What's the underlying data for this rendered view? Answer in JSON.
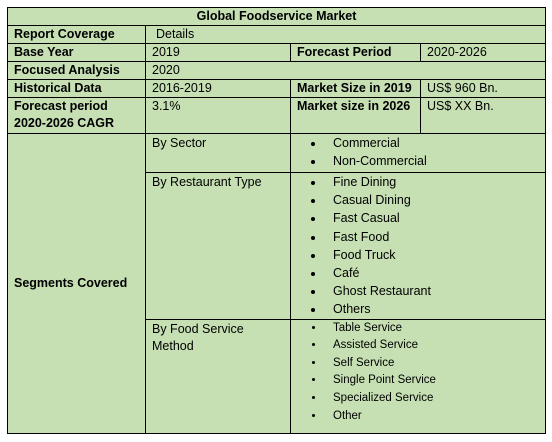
{
  "header": {
    "title": "Global Foodservice Market"
  },
  "table": {
    "rows": [
      [
        "Report Coverage",
        "Details"
      ],
      [
        "Base Year",
        "2019",
        "Forecast Period",
        "2020-2026"
      ],
      [
        "Focused Analysis",
        "2020"
      ],
      [
        "Historical Data",
        "2016-2019",
        "Market Size in 2019",
        "US$ 960 Bn."
      ],
      [
        "Forecast period 2020-2026 CAGR",
        "3.1%",
        "Market size in 2026",
        "US$ XX Bn."
      ]
    ]
  },
  "segments": {
    "label": "Segments Covered",
    "groups": [
      {
        "name": "By Sector",
        "items": [
          "Commercial",
          "Non-Commercial"
        ]
      },
      {
        "name": "By Restaurant Type",
        "items": [
          "Fine Dining",
          "Casual Dining",
          "Fast Casual",
          "Fast Food",
          "Food Truck",
          "Café",
          "Ghost Restaurant",
          "Others"
        ]
      },
      {
        "name": "By Food Service Method",
        "items": [
          "Table Service",
          "Assisted Service",
          "Self Service",
          "Single Point Service",
          "Specialized Service",
          "Other"
        ]
      }
    ]
  }
}
